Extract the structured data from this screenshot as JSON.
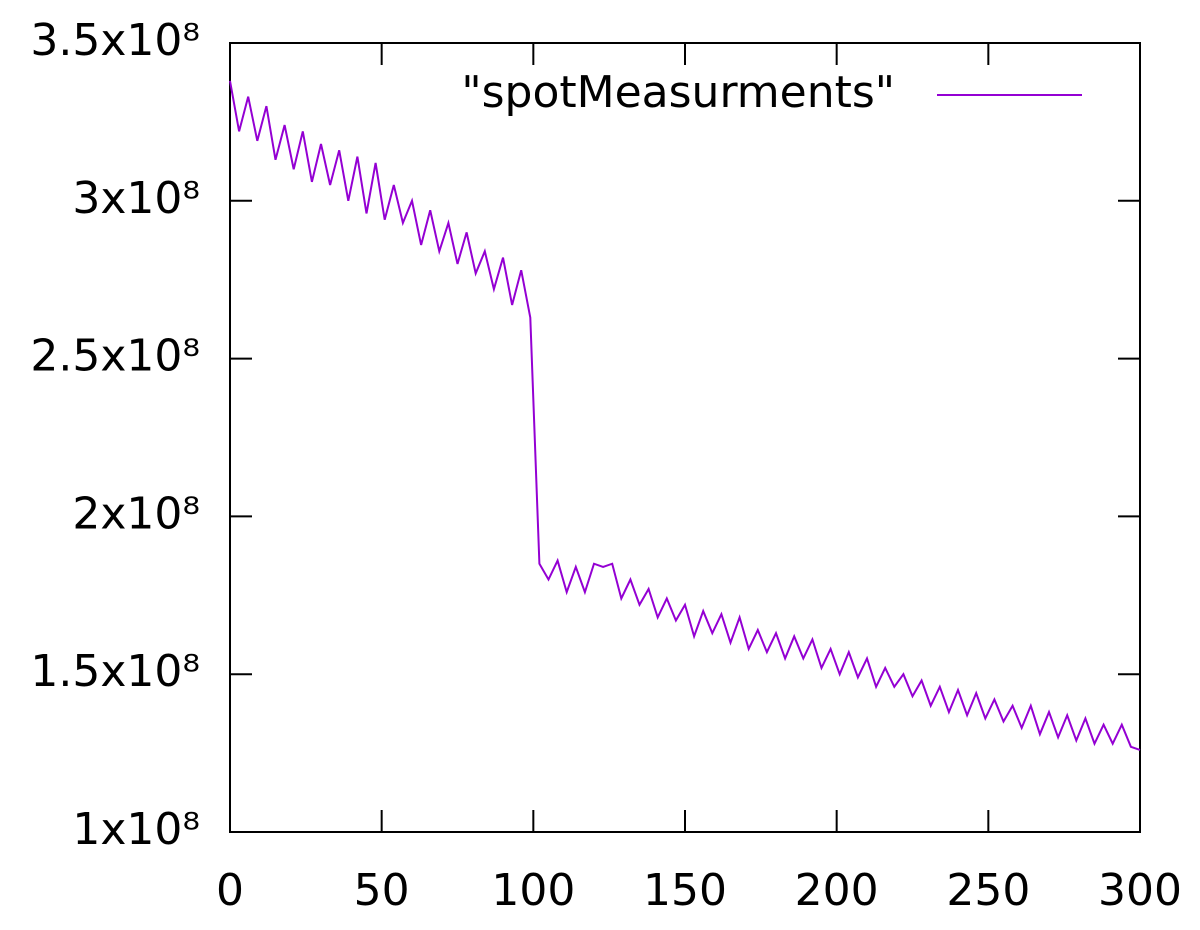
{
  "chart_data": {
    "type": "line",
    "x": [
      0,
      3,
      6,
      9,
      12,
      15,
      18,
      21,
      24,
      27,
      30,
      33,
      36,
      39,
      42,
      45,
      48,
      51,
      54,
      57,
      60,
      63,
      66,
      69,
      72,
      75,
      78,
      81,
      84,
      87,
      90,
      93,
      96,
      99,
      102,
      105,
      108,
      111,
      114,
      117,
      120,
      123,
      126,
      129,
      132,
      135,
      138,
      141,
      144,
      147,
      150,
      153,
      156,
      159,
      162,
      165,
      168,
      171,
      174,
      177,
      180,
      183,
      186,
      189,
      192,
      195,
      198,
      201,
      204,
      207,
      210,
      213,
      216,
      219,
      222,
      225,
      228,
      231,
      234,
      237,
      240,
      243,
      246,
      249,
      252,
      255,
      258,
      261,
      264,
      267,
      270,
      273,
      276,
      279,
      282,
      285,
      288,
      291,
      294,
      297,
      300
    ],
    "series": [
      {
        "name": "\"spotMeasurments\"",
        "color": "#9400d3",
        "values": [
          338000000.0,
          322000000.0,
          333000000.0,
          319000000.0,
          330000000.0,
          313000000.0,
          324000000.0,
          310000000.0,
          322000000.0,
          306000000.0,
          318000000.0,
          305000000.0,
          316000000.0,
          300000000.0,
          314000000.0,
          296000000.0,
          312000000.0,
          294000000.0,
          305000000.0,
          293000000.0,
          300000000.0,
          286000000.0,
          297000000.0,
          284000000.0,
          293000000.0,
          280000000.0,
          290000000.0,
          277000000.0,
          284000000.0,
          272000000.0,
          282000000.0,
          267000000.0,
          278000000.0,
          263000000.0,
          185000000.0,
          180000000.0,
          186000000.0,
          176000000.0,
          184000000.0,
          176000000.0,
          185000000.0,
          184000000.0,
          185000000.0,
          174000000.0,
          180000000.0,
          172000000.0,
          177000000.0,
          168000000.0,
          174000000.0,
          167000000.0,
          172000000.0,
          162000000.0,
          170000000.0,
          163000000.0,
          169000000.0,
          160000000.0,
          168000000.0,
          158000000.0,
          164000000.0,
          157000000.0,
          163000000.0,
          155000000.0,
          162000000.0,
          155000000.0,
          161000000.0,
          152000000.0,
          158000000.0,
          150000000.0,
          157000000.0,
          149000000.0,
          155000000.0,
          146000000.0,
          152000000.0,
          146000000.0,
          150000000.0,
          143000000.0,
          148000000.0,
          140000000.0,
          146000000.0,
          138000000.0,
          145000000.0,
          137000000.0,
          144000000.0,
          136000000.0,
          142000000.0,
          135000000.0,
          140000000.0,
          133000000.0,
          140000000.0,
          131000000.0,
          138000000.0,
          130000000.0,
          137000000.0,
          129000000.0,
          136000000.0,
          128000000.0,
          134000000.0,
          128000000.0,
          134000000.0,
          127000000.0,
          126000000.0
        ]
      }
    ],
    "xlim": [
      0,
      300
    ],
    "xticks": [
      0,
      50,
      100,
      150,
      200,
      250,
      300
    ],
    "ylim": [
      100000000.0,
      350000000.0
    ],
    "yticks": [
      {
        "value": 100000000.0,
        "label": "1x10⁸"
      },
      {
        "value": 150000000.0,
        "label": "1.5x10⁸"
      },
      {
        "value": 200000000.0,
        "label": "2x10⁸"
      },
      {
        "value": 250000000.0,
        "label": "2.5x10⁸"
      },
      {
        "value": 300000000.0,
        "label": "3x10⁸"
      },
      {
        "value": 350000000.0,
        "label": "3.5x10⁸"
      }
    ],
    "grid": false,
    "legend": "top-right"
  }
}
